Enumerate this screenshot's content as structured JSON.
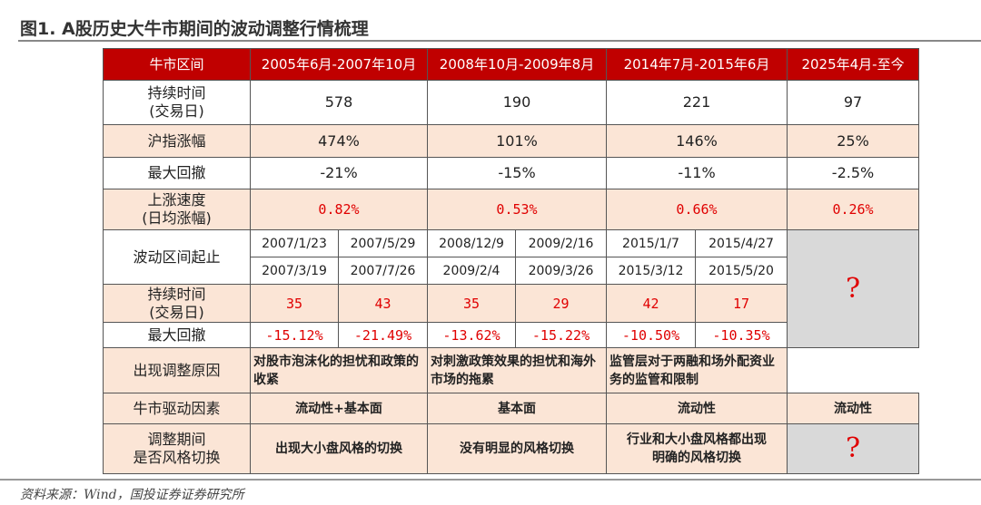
{
  "title": "图1. A股历史大牛市期间的波动调整行情梳理",
  "source": "资料来源：Wind，国投证券证券研究所",
  "header": [
    "牛市区间",
    "2005年6月-2007年10月",
    "2008年10月-2009年8月",
    "2014年7月-2015年6月",
    "2025年4月-至今"
  ],
  "rows": {
    "duration": {
      "label1": "持续时间",
      "label2": "(交易日)",
      "values": [
        "578",
        "190",
        "221",
        "97"
      ]
    },
    "gain": {
      "label": "沪指涨幅",
      "values": [
        "474%",
        "101%",
        "146%",
        "25%"
      ]
    },
    "drawdown": {
      "label": "最大回撤",
      "values": [
        "-21%",
        "-15%",
        "-11%",
        "-2.5%"
      ]
    },
    "speed": {
      "label1": "上涨速度",
      "label2": "(日均涨幅)",
      "values": [
        "0.82%",
        "0.53%",
        "0.66%",
        "0.26%"
      ]
    },
    "interval": {
      "label": "波动区间起止",
      "start": [
        "2007/1/23",
        "2007/5/29",
        "2008/12/9",
        "2009/2/16",
        "2015/1/7",
        "2015/4/27"
      ],
      "end": [
        "2007/3/19",
        "2007/7/26",
        "2009/2/4",
        "2009/3/26",
        "2015/3/12",
        "2015/5/20"
      ]
    },
    "adj_duration": {
      "label1": "持续时间",
      "label2": "(交易日)",
      "values": [
        "35",
        "43",
        "35",
        "29",
        "42",
        "17"
      ]
    },
    "adj_drawdown": {
      "label": "最大回撤",
      "values": [
        "-15.12%",
        "-21.49%",
        "-13.62%",
        "-15.22%",
        "-10.50%",
        "-10.35%"
      ]
    },
    "reason": {
      "label": "出现调整原因",
      "values": [
        "对股市泡沫化的担忧和政策的收紧",
        "对刺激政策效果的担忧和海外市场的拖累",
        "监管层对于两融和场外配资业务的监管和限制"
      ]
    },
    "driver": {
      "label": "牛市驱动因素",
      "values": [
        "流动性+基本面",
        "基本面",
        "流动性",
        "流动性"
      ]
    },
    "style": {
      "label1": "调整期间",
      "label2": "是否风格切换",
      "values": [
        "出现大小盘风格的切换",
        "没有明显的风格切换",
        "行业和大小盘风格都出现明确的风格切换"
      ]
    }
  },
  "unknown_mark": "?",
  "colors": {
    "header_bg": "#c00000",
    "peach": "#fbe5d6",
    "gray": "#d9d9d9",
    "highlight": "#e00000"
  }
}
